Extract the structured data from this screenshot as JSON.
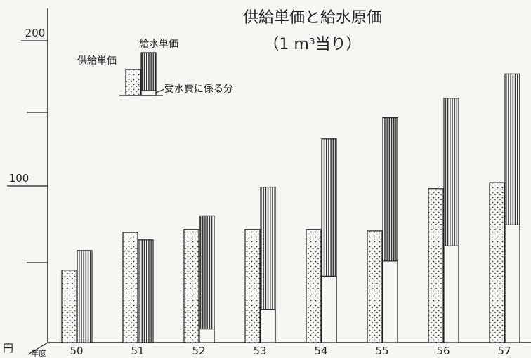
{
  "chart_data": {
    "type": "bar",
    "title": "供給単価と給水原価",
    "subtitle": "（1 m³当り）",
    "y_unit_label": "円",
    "x_unit_label": "年度",
    "categories": [
      "50",
      "51",
      "52",
      "53",
      "54",
      "55",
      "56",
      "57"
    ],
    "y_ticks": [
      {
        "value": 200,
        "label": "200"
      },
      {
        "value": 100,
        "label": "100"
      }
    ],
    "ylim": [
      0,
      215
    ],
    "series": [
      {
        "name": "供給単価",
        "values": [
          48,
          73,
          75,
          75,
          75,
          74,
          102,
          106
        ]
      },
      {
        "name": "給水単価",
        "values": [
          61,
          68,
          84,
          103,
          135,
          149,
          162,
          178
        ]
      },
      {
        "name": "受水費に係る分",
        "values": [
          0,
          0,
          9,
          22,
          44,
          54,
          64,
          78
        ]
      }
    ],
    "legend": {
      "position": "top-left",
      "label_supply": "供給単価",
      "label_water": "給水単価",
      "label_purchase": "受水費に係る分"
    },
    "colors": {
      "ink": "#222222",
      "paper": "#f7f6f2"
    }
  }
}
